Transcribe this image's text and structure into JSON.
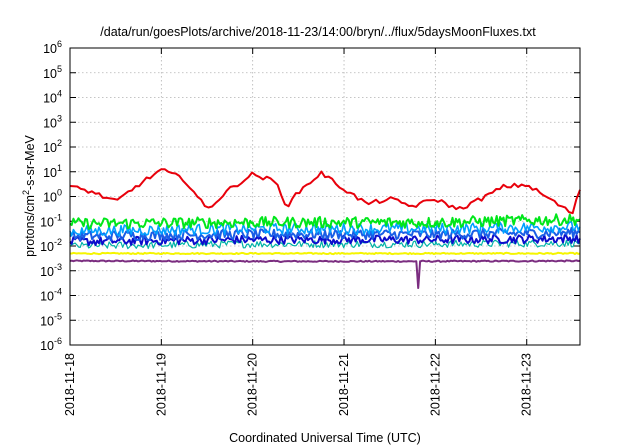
{
  "chart_data": {
    "type": "line",
    "title": "/data/run/goesPlots/archive/2018-11-23/14:00/bryn/../flux/5daysMoonFluxes.txt",
    "xlabel": "Coordinated Universal Time (UTC)",
    "ylabel": "protons/cm2-s-sr-MeV",
    "ylabel_parts": {
      "base": "protons/cm",
      "sup": "2",
      "rest": "-s-sr-MeV"
    },
    "y_scale": "log",
    "ylim": [
      1e-06,
      1000000.0
    ],
    "y_tick_exponents": [
      -6,
      -5,
      -4,
      -3,
      -2,
      -1,
      0,
      1,
      2,
      3,
      4,
      5,
      6
    ],
    "y_tick_base": "10",
    "x_unit": "days",
    "xlim": [
      "2018-11-18T00:00",
      "2018-11-23T14:00"
    ],
    "x_ticks": [
      "2018-11-18",
      "2018-11-19",
      "2018-11-20",
      "2018-11-21",
      "2018-11-22",
      "2018-11-23"
    ],
    "grid": true,
    "series": [
      {
        "color": "#e8000b",
        "width": 2,
        "x": [
          "2018-11-18T00:00",
          "2018-11-18T06:00",
          "2018-11-18T12:00",
          "2018-11-18T18:00",
          "2018-11-19T00:00",
          "2018-11-19T06:00",
          "2018-11-19T12:00",
          "2018-11-19T18:00",
          "2018-11-20T00:00",
          "2018-11-20T06:00",
          "2018-11-20T09:00",
          "2018-11-20T12:00",
          "2018-11-20T18:00",
          "2018-11-21T00:00",
          "2018-11-21T06:00",
          "2018-11-21T12:00",
          "2018-11-21T18:00",
          "2018-11-22T00:00",
          "2018-11-22T06:00",
          "2018-11-22T12:00",
          "2018-11-22T18:00",
          "2018-11-23T00:00",
          "2018-11-23T06:00",
          "2018-11-23T12:00",
          "2018-11-23T14:00"
        ],
        "y": [
          2.5,
          1.5,
          0.6,
          3,
          12,
          5,
          0.3,
          2,
          8,
          4,
          0.4,
          1.5,
          9,
          2,
          0.5,
          0.8,
          0.4,
          0.8,
          0.3,
          0.8,
          2.5,
          3,
          0.8,
          0.2,
          2
        ]
      },
      {
        "color": "#00e61a",
        "width": 2,
        "noise": 0.45,
        "x": [
          "2018-11-18T00:00",
          "2018-11-20T00:00",
          "2018-11-22T00:00",
          "2018-11-23T14:00"
        ],
        "y": [
          0.08,
          0.09,
          0.09,
          0.12
        ]
      },
      {
        "color": "#00a0ff",
        "width": 1.6,
        "noise": 0.45,
        "x": [
          "2018-11-18T00:00",
          "2018-11-20T00:00",
          "2018-11-22T00:00",
          "2018-11-23T14:00"
        ],
        "y": [
          0.04,
          0.05,
          0.05,
          0.06
        ]
      },
      {
        "color": "#1a5ee6",
        "width": 2,
        "noise": 0.4,
        "x": [
          "2018-11-18T00:00",
          "2018-11-20T00:00",
          "2018-11-22T00:00",
          "2018-11-23T14:00"
        ],
        "y": [
          0.025,
          0.03,
          0.03,
          0.035
        ]
      },
      {
        "color": "#0d0dcc",
        "width": 2,
        "noise": 0.35,
        "x": [
          "2018-11-18T00:00",
          "2018-11-20T00:00",
          "2018-11-22T00:00",
          "2018-11-23T14:00"
        ],
        "y": [
          0.015,
          0.018,
          0.018,
          0.02
        ]
      },
      {
        "color": "#00b3a6",
        "width": 1.2,
        "noise": 0.3,
        "x": [
          "2018-11-18T00:00",
          "2018-11-20T00:00",
          "2018-11-22T00:00",
          "2018-11-23T14:00"
        ],
        "y": [
          0.01,
          0.012,
          0.012,
          0.013
        ]
      },
      {
        "color": "#f5f500",
        "width": 2,
        "noise": 0.05,
        "x": [
          "2018-11-18T00:00",
          "2018-11-20T00:00",
          "2018-11-22T00:00",
          "2018-11-23T14:00"
        ],
        "y": [
          0.005,
          0.005,
          0.005,
          0.005
        ]
      },
      {
        "color": "#7b2d80",
        "width": 2,
        "noise": 0.05,
        "x": [
          "2018-11-18T00:00",
          "2018-11-20T00:00",
          "2018-11-21T19:00",
          "2018-11-21T19:30",
          "2018-11-21T20:00",
          "2018-11-23T14:00"
        ],
        "y": [
          0.0025,
          0.0024,
          0.0024,
          0.0002,
          0.0024,
          0.0025
        ]
      }
    ]
  }
}
